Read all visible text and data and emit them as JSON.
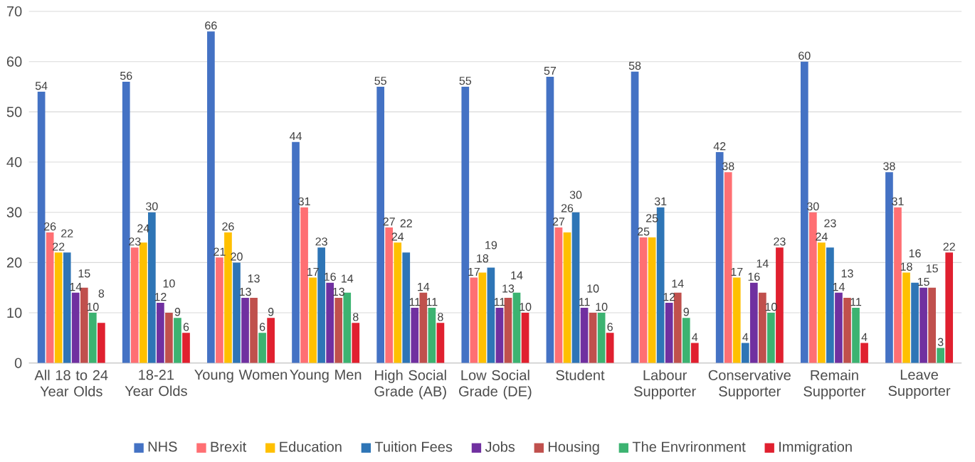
{
  "chart_data": {
    "type": "bar",
    "categories": [
      "All 18 to 24 Year Olds",
      "18-21 Year Olds",
      "Young Women",
      "Young Men",
      "High Social Grade (AB)",
      "Low Social Grade (DE)",
      "Student",
      "Labour Supporter",
      "Conservative Supporter",
      "Remain Supporter",
      "Leave Supporter"
    ],
    "series": [
      {
        "name": "NHS",
        "color": "#4472c4",
        "values": [
          54,
          56,
          66,
          44,
          55,
          55,
          57,
          58,
          42,
          60,
          38
        ]
      },
      {
        "name": "Brexit",
        "color": "#ff6f73",
        "values": [
          26,
          23,
          21,
          31,
          27,
          17,
          27,
          25,
          38,
          30,
          31
        ]
      },
      {
        "name": "Education",
        "color": "#ffc000",
        "values": [
          22,
          24,
          26,
          17,
          24,
          18,
          26,
          25,
          17,
          24,
          18
        ]
      },
      {
        "name": "Tuition Fees",
        "color": "#2e75b6",
        "values": [
          22,
          30,
          20,
          23,
          22,
          19,
          30,
          31,
          4,
          23,
          16
        ]
      },
      {
        "name": "Jobs",
        "color": "#7030a0",
        "values": [
          14,
          12,
          13,
          16,
          11,
          11,
          11,
          12,
          16,
          14,
          15
        ]
      },
      {
        "name": "Housing",
        "color": "#c0504d",
        "values": [
          15,
          10,
          13,
          13,
          14,
          13,
          10,
          14,
          14,
          13,
          15
        ]
      },
      {
        "name": "The Envrironment",
        "color": "#3cb371",
        "values": [
          10,
          9,
          6,
          14,
          11,
          14,
          10,
          9,
          10,
          11,
          3
        ]
      },
      {
        "name": "Immigration",
        "color": "#e0202f",
        "values": [
          8,
          6,
          9,
          8,
          8,
          10,
          6,
          4,
          23,
          4,
          22
        ]
      }
    ],
    "ylim": [
      0,
      70
    ],
    "yticks": [
      0,
      10,
      20,
      30,
      40,
      50,
      60,
      70
    ],
    "grid": "y",
    "legend": "bottom",
    "data_labels": true
  }
}
